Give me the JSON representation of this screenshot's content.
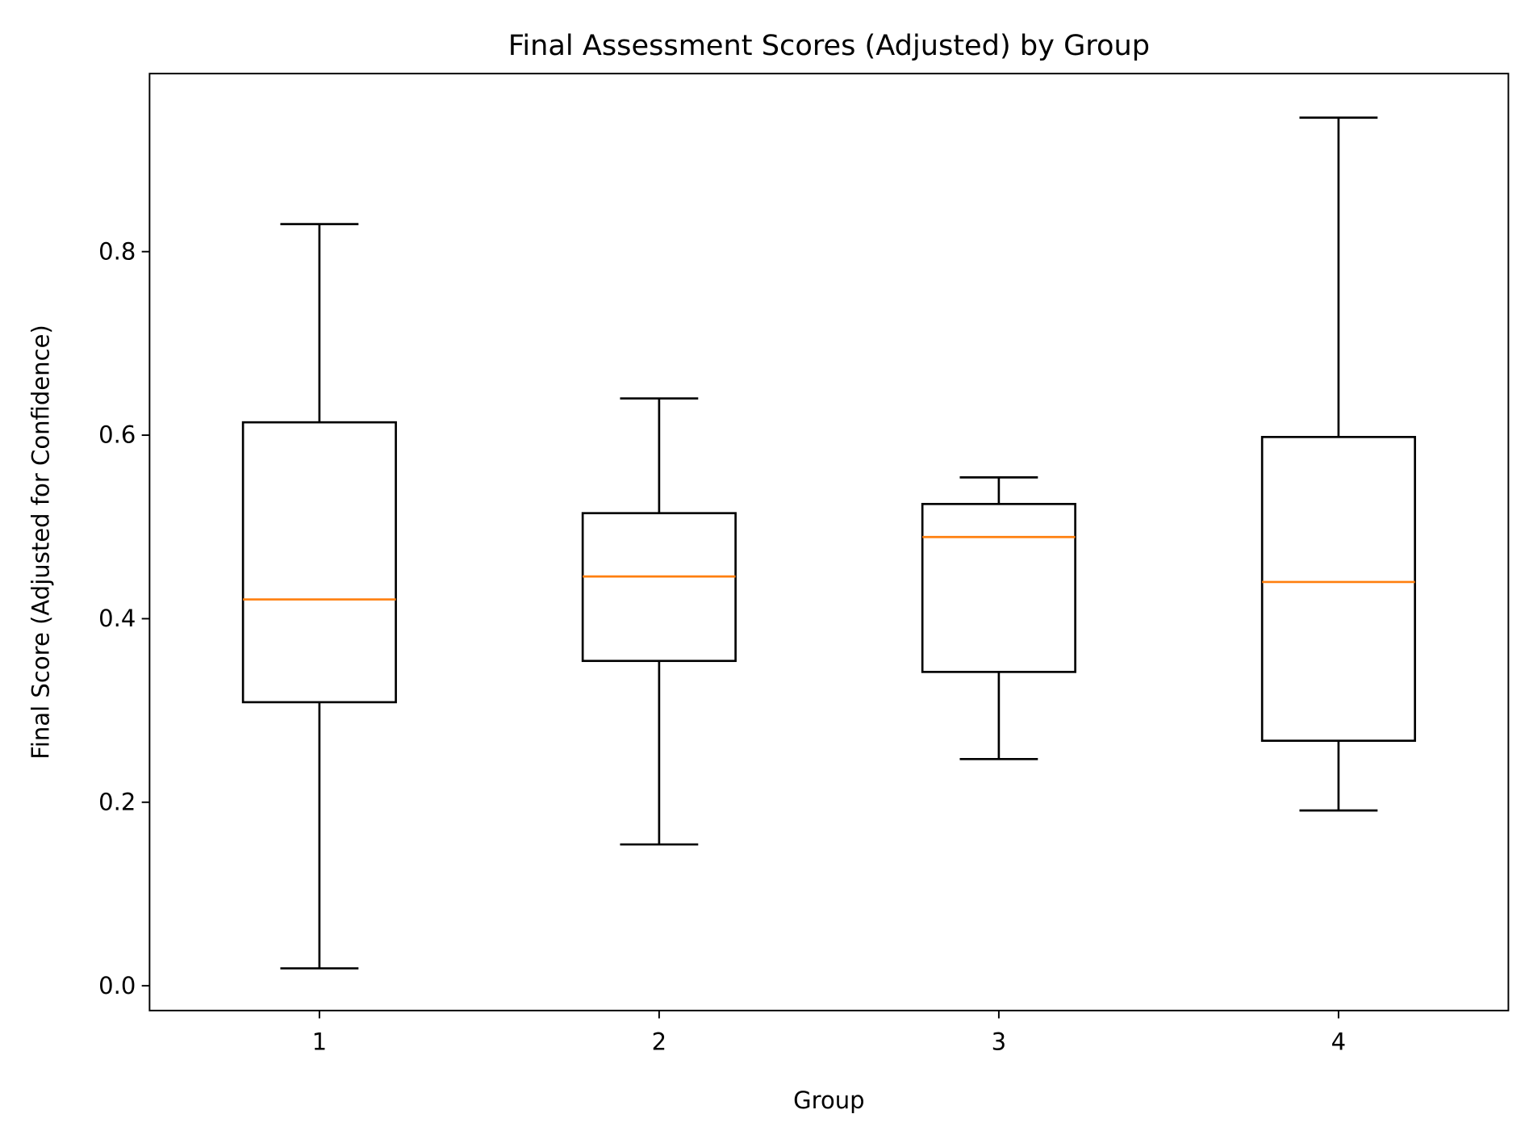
{
  "chart_data": {
    "type": "box",
    "title": "Final Assessment Scores (Adjusted) by Group",
    "xlabel": "Group",
    "ylabel": "Final Score (Adjusted for Confidence)",
    "categories": [
      "1",
      "2",
      "3",
      "4"
    ],
    "boxes": [
      {
        "whisker_low": 0.019,
        "q1": 0.309,
        "median": 0.421,
        "q3": 0.614,
        "whisker_high": 0.83
      },
      {
        "whisker_low": 0.154,
        "q1": 0.354,
        "median": 0.446,
        "q3": 0.515,
        "whisker_high": 0.64
      },
      {
        "whisker_low": 0.247,
        "q1": 0.342,
        "median": 0.489,
        "q3": 0.525,
        "whisker_high": 0.554
      },
      {
        "whisker_low": 0.191,
        "q1": 0.267,
        "median": 0.44,
        "q3": 0.598,
        "whisker_high": 0.946
      }
    ],
    "yticks": [
      "0.0",
      "0.2",
      "0.4",
      "0.6",
      "0.8"
    ],
    "ylim": [
      -0.027,
      0.994
    ],
    "xlim": [
      0.5,
      4.5
    ],
    "grid": false,
    "colors": {
      "box": "#000000",
      "median": "#ff7f0e"
    }
  }
}
